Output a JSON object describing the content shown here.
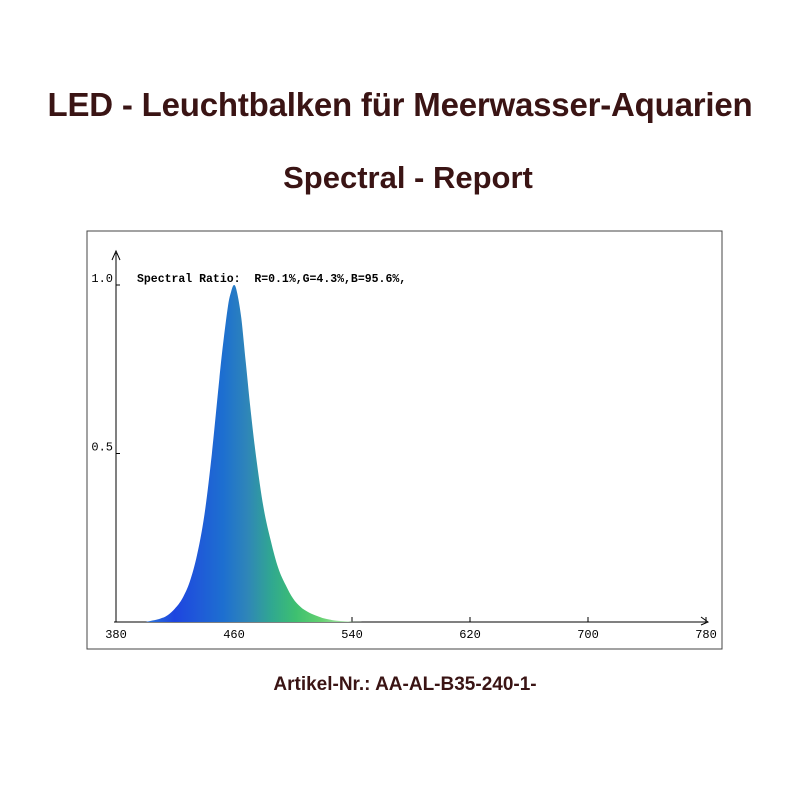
{
  "header": {
    "title": "LED - Leuchtbalken für Meerwasser-Aquarien",
    "subtitle": "Spectral - Report"
  },
  "footer": {
    "article": "Artikel-Nr.: AA-AL-B35-240-1-"
  },
  "chart_data": {
    "type": "area",
    "annotation": "Spectral Ratio:  R=0.1%,G=4.3%,B=95.6%,",
    "x_ticks": [
      380,
      460,
      540,
      620,
      700,
      780
    ],
    "y_ticks": [
      {
        "value": 0.5,
        "label": "0.5"
      },
      {
        "value": 1.0,
        "label": "1.0"
      }
    ],
    "xlim": [
      380,
      780
    ],
    "ylim": [
      0,
      1.0
    ],
    "grid": false,
    "series": [
      {
        "x": [
          400,
          410,
          415,
          420,
          425,
          430,
          435,
          440,
          445,
          450,
          453,
          456,
          458,
          460,
          462,
          465,
          468,
          471,
          475,
          480,
          485,
          490,
          495,
          500,
          505,
          510,
          515,
          520,
          525,
          530,
          540,
          550
        ],
        "y": [
          0.0,
          0.01,
          0.02,
          0.04,
          0.07,
          0.12,
          0.2,
          0.32,
          0.5,
          0.72,
          0.84,
          0.94,
          0.98,
          1.0,
          0.98,
          0.9,
          0.77,
          0.64,
          0.49,
          0.34,
          0.24,
          0.16,
          0.11,
          0.07,
          0.045,
          0.03,
          0.02,
          0.012,
          0.007,
          0.004,
          0.001,
          0.0
        ]
      }
    ],
    "gradient_colors": [
      "#2a6fd8",
      "#1d45e0",
      "#1f5ad8",
      "#1d6fd0",
      "#2f86b8",
      "#30a890",
      "#3ec070",
      "#63d070",
      "#a9e2a9"
    ]
  }
}
